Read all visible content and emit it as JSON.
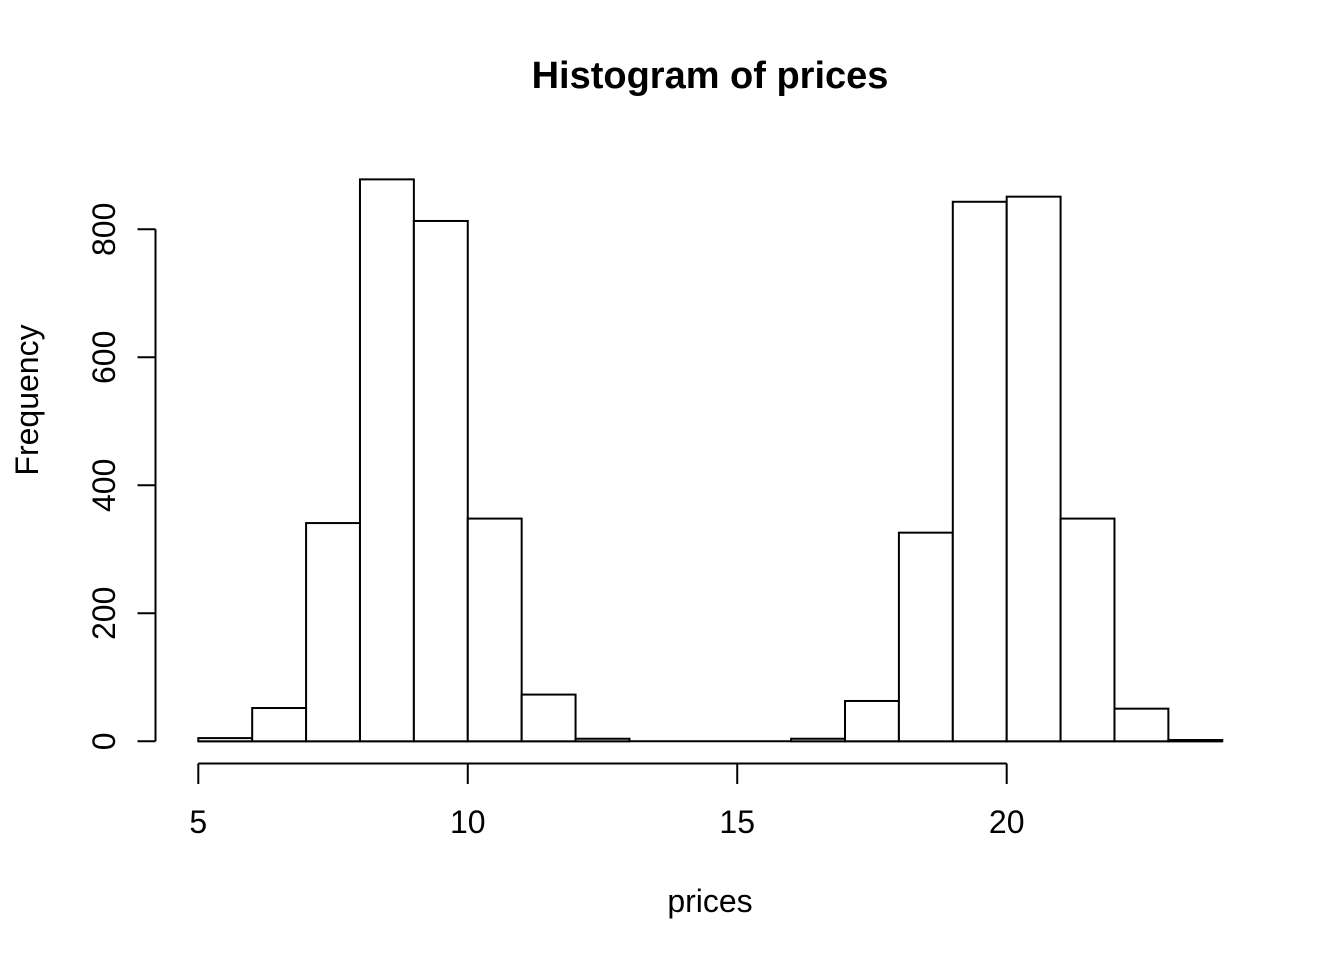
{
  "figure": {
    "background": "#ffffff"
  },
  "chart_data": {
    "type": "bar",
    "subtype": "histogram",
    "title": "Histogram of prices",
    "xlabel": "prices",
    "ylabel": "Frequency",
    "bin_edges": [
      5,
      6,
      7,
      8,
      9,
      10,
      11,
      12,
      13,
      14,
      15,
      16,
      17,
      18,
      19,
      20,
      21,
      22,
      23,
      24
    ],
    "counts": [
      5,
      52,
      341,
      878,
      813,
      348,
      73,
      4,
      0,
      0,
      0,
      4,
      63,
      326,
      843,
      851,
      348,
      51,
      2
    ],
    "x_ticks": [
      5,
      10,
      15,
      20
    ],
    "y_ticks": [
      0,
      200,
      400,
      600,
      800
    ],
    "x_range": [
      5,
      24
    ],
    "y_range": [
      0,
      880
    ],
    "grid": false,
    "legend_position": "none",
    "bar_fill": "#ffffff",
    "bar_stroke": "#000000",
    "axis_color": "#000000",
    "text_color": "#000000"
  }
}
